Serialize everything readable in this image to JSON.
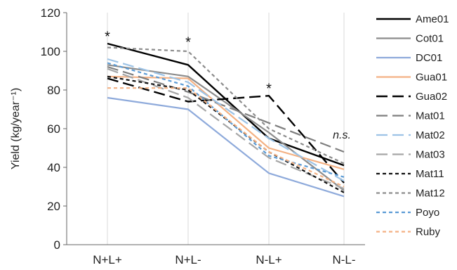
{
  "chart_data": {
    "type": "line",
    "title": "",
    "xlabel": "",
    "ylabel": "Yield (kg/year⁻¹)",
    "ylim": [
      0,
      120
    ],
    "yticks": [
      0,
      20,
      40,
      60,
      80,
      100,
      120
    ],
    "categories": [
      "N+L+",
      "N+L-",
      "N-L+",
      "N-L-"
    ],
    "grid": "vertical lines at categories",
    "legend_position": "right",
    "series": [
      {
        "name": "Ame01",
        "values": [
          104,
          93,
          55,
          41
        ],
        "color": "#000000",
        "dash": "solid",
        "width": 2.4
      },
      {
        "name": "Cot01",
        "values": [
          93,
          87,
          58,
          28
        ],
        "color": "#8c8c8c",
        "dash": "solid",
        "width": 2.2
      },
      {
        "name": "DC01",
        "values": [
          76,
          70,
          37,
          25
        ],
        "color": "#8eaadb",
        "dash": "solid",
        "width": 2.2
      },
      {
        "name": "Gua01",
        "values": [
          87,
          86,
          50,
          39
        ],
        "color": "#f4b183",
        "dash": "solid",
        "width": 2.2
      },
      {
        "name": "Gua02",
        "values": [
          86,
          74,
          77,
          32
        ],
        "color": "#000000",
        "dash": "long",
        "width": 2.4
      },
      {
        "name": "Mat01",
        "values": [
          92,
          79,
          63,
          48
        ],
        "color": "#7f7f7f",
        "dash": "long",
        "width": 2.2
      },
      {
        "name": "Mat02",
        "values": [
          96,
          84,
          55,
          33
        ],
        "color": "#9dc3e6",
        "dash": "long",
        "width": 2.2
      },
      {
        "name": "Mat03",
        "values": [
          91,
          76,
          45,
          29
        ],
        "color": "#a6a6a6",
        "dash": "long",
        "width": 2.2
      },
      {
        "name": "Mat11",
        "values": [
          87,
          80,
          48,
          27
        ],
        "color": "#111111",
        "dash": "short",
        "width": 2.2
      },
      {
        "name": "Mat12",
        "values": [
          102,
          100,
          60,
          42
        ],
        "color": "#8c8c8c",
        "dash": "short",
        "width": 2.2
      },
      {
        "name": "Poyo",
        "values": [
          94,
          82,
          46,
          35
        ],
        "color": "#5b9bd5",
        "dash": "short",
        "width": 2.2
      },
      {
        "name": "Ruby",
        "values": [
          81,
          81,
          48,
          30
        ],
        "color": "#f4b183",
        "dash": "short",
        "width": 2.2
      }
    ],
    "annotations": [
      {
        "text": "*",
        "category": "N+L+",
        "y": 109
      },
      {
        "text": "*",
        "category": "N+L-",
        "y": 106
      },
      {
        "text": "*",
        "category": "N-L+",
        "y": 82
      },
      {
        "text": "n.s.",
        "category": "N-L-",
        "y": 55
      }
    ]
  }
}
